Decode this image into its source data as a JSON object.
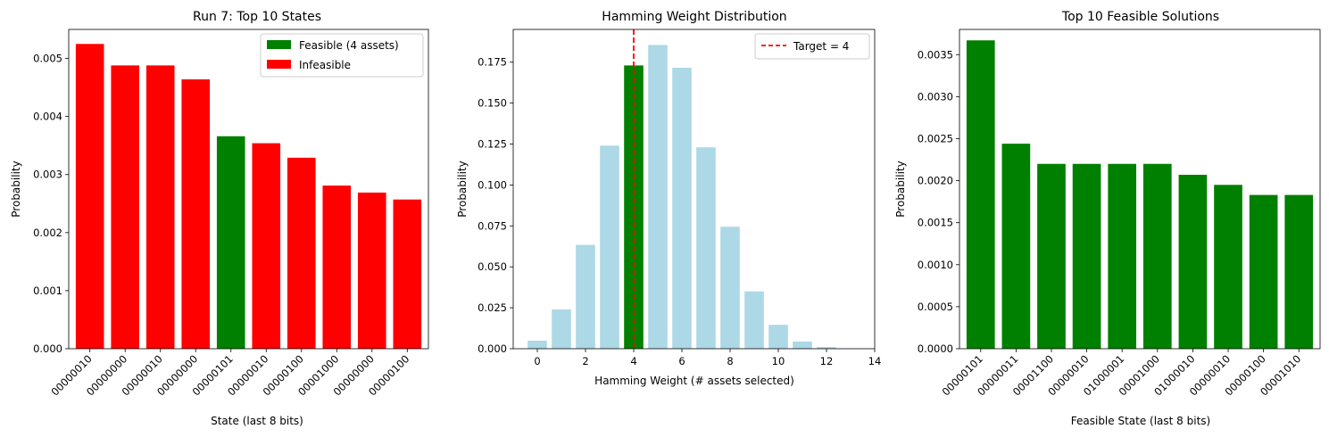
{
  "chart_data": [
    {
      "type": "bar",
      "title": "Run 7: Top 10 States",
      "xlabel": "State (last 8 bits)",
      "ylabel": "Probability",
      "categories": [
        "00000010",
        "00000000",
        "00000010",
        "00000000",
        "00000101",
        "00000010",
        "00000100",
        "00001000",
        "00000000",
        "00000100"
      ],
      "values": [
        0.00525,
        0.00488,
        0.00488,
        0.00464,
        0.00366,
        0.00354,
        0.00329,
        0.00281,
        0.00269,
        0.00257
      ],
      "feasible": [
        false,
        false,
        false,
        false,
        true,
        false,
        false,
        false,
        false,
        false
      ],
      "ylim": [
        0,
        0.0055
      ],
      "yticks": [
        0.0,
        0.001,
        0.002,
        0.003,
        0.004,
        0.005
      ],
      "ytick_labels": [
        "0.000",
        "0.001",
        "0.002",
        "0.003",
        "0.004",
        "0.005"
      ],
      "legend": [
        {
          "label": "Feasible (4 assets)",
          "color": "#008000"
        },
        {
          "label": "Infeasible",
          "color": "#ff0000"
        }
      ],
      "legend_position": "top-right",
      "colors": {
        "feasible": "#008000",
        "infeasible": "#ff0000"
      }
    },
    {
      "type": "bar",
      "title": "Hamming Weight Distribution",
      "xlabel": "Hamming Weight (# assets selected)",
      "ylabel": "Probability",
      "x": [
        0,
        1,
        2,
        3,
        4,
        5,
        6,
        7,
        8,
        9,
        10,
        11,
        12,
        13
      ],
      "values": [
        0.0049,
        0.024,
        0.0634,
        0.124,
        0.173,
        0.1855,
        0.1716,
        0.123,
        0.0745,
        0.035,
        0.0146,
        0.0044,
        0.001,
        0.0002
      ],
      "highlight_x": 4,
      "xlim": [
        -1,
        14
      ],
      "ylim": [
        0,
        0.195
      ],
      "xticks": [
        0,
        2,
        4,
        6,
        8,
        10,
        12,
        14
      ],
      "yticks": [
        0.0,
        0.025,
        0.05,
        0.075,
        0.1,
        0.125,
        0.15,
        0.175
      ],
      "ytick_labels": [
        "0.000",
        "0.025",
        "0.050",
        "0.075",
        "0.100",
        "0.125",
        "0.150",
        "0.175"
      ],
      "target_line": {
        "x": 4,
        "label": "Target = 4",
        "color": "#ff0000"
      },
      "legend_position": "top-right",
      "colors": {
        "bar": "#add8e6",
        "highlight": "#008000"
      }
    },
    {
      "type": "bar",
      "title": "Top 10 Feasible Solutions",
      "xlabel": "Feasible State (last 8 bits)",
      "ylabel": "Probability",
      "categories": [
        "00000101",
        "00000011",
        "00001100",
        "00000010",
        "01000001",
        "00001000",
        "01000010",
        "00000010",
        "00000100",
        "00001010"
      ],
      "values": [
        0.00367,
        0.00244,
        0.0022,
        0.0022,
        0.0022,
        0.0022,
        0.00207,
        0.00195,
        0.00183,
        0.00183
      ],
      "ylim": [
        0,
        0.0038
      ],
      "yticks": [
        0.0,
        0.0005,
        0.001,
        0.0015,
        0.002,
        0.0025,
        0.003,
        0.0035
      ],
      "ytick_labels": [
        "0.0000",
        "0.0005",
        "0.0010",
        "0.0015",
        "0.0020",
        "0.0025",
        "0.0030",
        "0.0035"
      ],
      "colors": {
        "bar": "#008000"
      }
    }
  ]
}
